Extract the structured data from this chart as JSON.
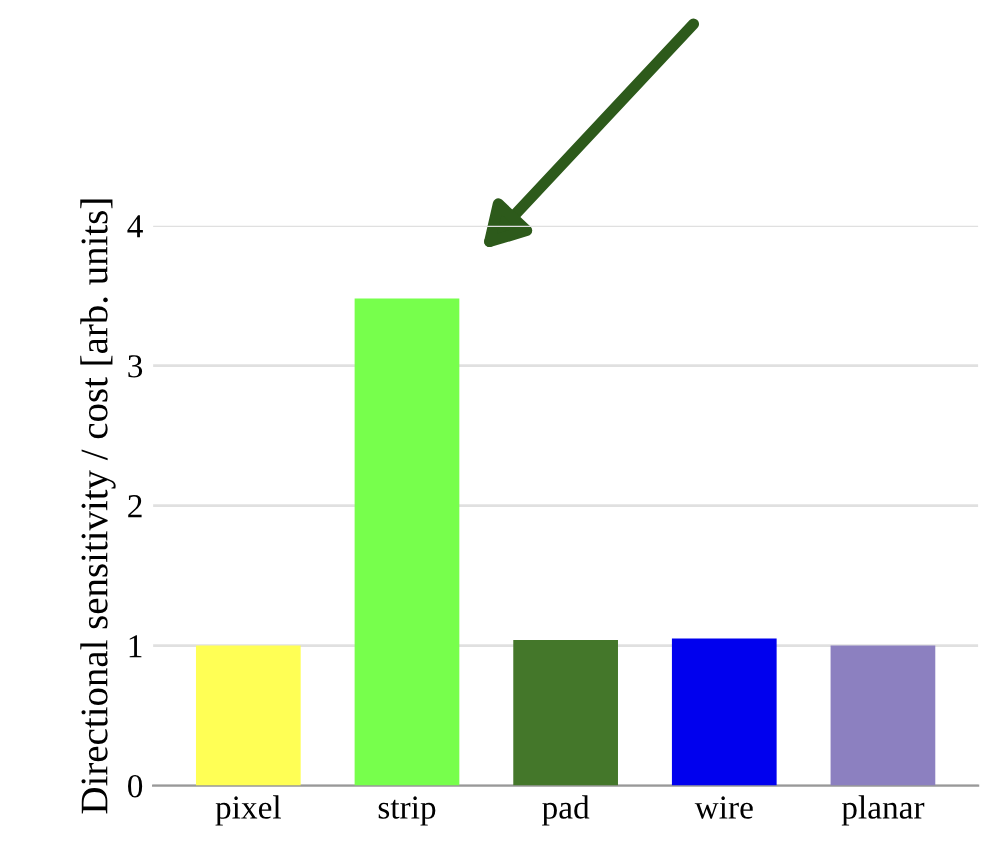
{
  "chart_data": {
    "type": "bar",
    "ylabel": "Directional sensitivity / cost [arb. units]",
    "categories": [
      "pixel",
      "strip",
      "pad",
      "wire",
      "planar"
    ],
    "values": [
      1.0,
      3.48,
      1.04,
      1.05,
      1.0
    ],
    "colors": [
      "#ffff55",
      "#77ff4c",
      "#44772a",
      "#0000ee",
      "#8c80c0"
    ],
    "ylim": [
      0,
      4
    ],
    "yticks": [
      0,
      1,
      2,
      3,
      4
    ],
    "grid": "y"
  }
}
